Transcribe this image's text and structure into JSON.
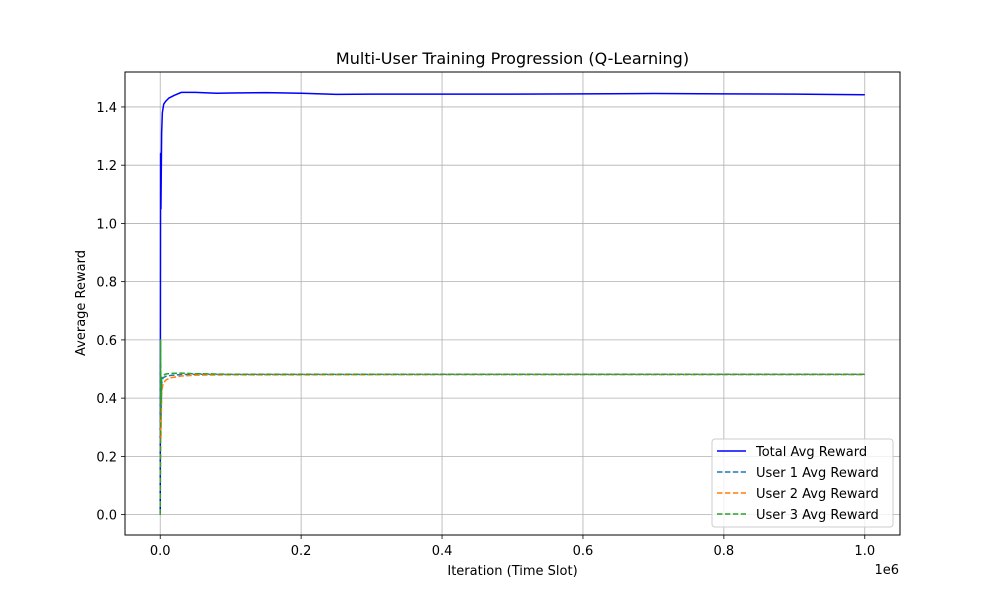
{
  "chart_data": {
    "type": "line",
    "title": "Multi-User Training Progression (Q-Learning)",
    "xlabel": "Iteration (Time Slot)",
    "ylabel": "Average Reward",
    "x_offset_label": "1e6",
    "xlim": [
      -50000,
      1050000
    ],
    "ylim": [
      -0.07,
      1.52
    ],
    "xticks": [
      0,
      200000,
      400000,
      600000,
      800000,
      1000000
    ],
    "xtick_labels": [
      "0.0",
      "0.2",
      "0.4",
      "0.6",
      "0.8",
      "1.0"
    ],
    "yticks": [
      0.0,
      0.2,
      0.4,
      0.6,
      0.8,
      1.0,
      1.2,
      1.4
    ],
    "ytick_labels": [
      "0.0",
      "0.2",
      "0.4",
      "0.6",
      "0.8",
      "1.0",
      "1.2",
      "1.4"
    ],
    "grid": true,
    "legend_position": "lower-right",
    "series": [
      {
        "name": "Total Avg Reward",
        "color": "#0000ff",
        "style": "solid",
        "x": [
          0,
          500,
          1000,
          2000,
          3000,
          5000,
          8000,
          12000,
          20000,
          30000,
          50000,
          80000,
          100000,
          150000,
          200000,
          250000,
          300000,
          400000,
          500000,
          600000,
          700000,
          800000,
          900000,
          1000000
        ],
        "y": [
          0.0,
          1.24,
          1.05,
          1.31,
          1.38,
          1.41,
          1.42,
          1.43,
          1.44,
          1.45,
          1.45,
          1.447,
          1.448,
          1.449,
          1.447,
          1.443,
          1.444,
          1.444,
          1.444,
          1.445,
          1.446,
          1.445,
          1.444,
          1.442
        ]
      },
      {
        "name": "User 1 Avg Reward",
        "color": "#1f77b4",
        "style": "dashed",
        "x": [
          0,
          500,
          1000,
          2000,
          4000,
          8000,
          15000,
          30000,
          50000,
          100000,
          200000,
          400000,
          600000,
          800000,
          1000000
        ],
        "y": [
          0.0,
          0.42,
          0.3,
          0.45,
          0.47,
          0.475,
          0.478,
          0.481,
          0.482,
          0.481,
          0.481,
          0.481,
          0.481,
          0.481,
          0.481
        ]
      },
      {
        "name": "User 2 Avg Reward",
        "color": "#ff7f0e",
        "style": "dashed",
        "x": [
          0,
          500,
          1000,
          2000,
          4000,
          8000,
          15000,
          30000,
          50000,
          100000,
          200000,
          400000,
          600000,
          800000,
          1000000
        ],
        "y": [
          0.0,
          0.33,
          0.26,
          0.42,
          0.45,
          0.462,
          0.47,
          0.476,
          0.479,
          0.48,
          0.48,
          0.481,
          0.481,
          0.481,
          0.481
        ]
      },
      {
        "name": "User 3 Avg Reward",
        "color": "#2ca02c",
        "style": "dashed",
        "x": [
          0,
          500,
          1000,
          2000,
          4000,
          8000,
          15000,
          30000,
          50000,
          100000,
          200000,
          400000,
          600000,
          800000,
          1000000
        ],
        "y": [
          0.0,
          0.6,
          0.38,
          0.47,
          0.478,
          0.483,
          0.485,
          0.486,
          0.484,
          0.482,
          0.482,
          0.482,
          0.482,
          0.482,
          0.482
        ]
      }
    ]
  }
}
